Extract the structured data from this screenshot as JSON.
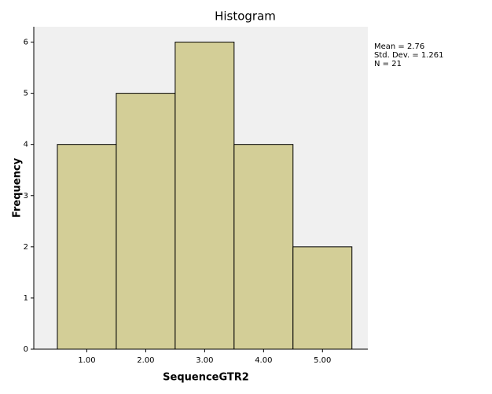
{
  "chart_data": {
    "type": "histogram",
    "title": "Histogram",
    "x_label": "SequenceGTR2",
    "y_label": "Frequency",
    "bins": [
      0.5,
      1.5,
      2.5,
      3.5,
      4.5,
      5.5
    ],
    "values": [
      4,
      5,
      6,
      4,
      2
    ],
    "color": "#d3ce97",
    "xlim": [
      0.1,
      5.77
    ],
    "ylim": [
      0,
      6.3
    ],
    "xticks": [
      {
        "value": 1,
        "label": "1.00"
      },
      {
        "value": 2,
        "label": "2.00"
      },
      {
        "value": 3,
        "label": "3.00"
      },
      {
        "value": 4,
        "label": "4.00"
      },
      {
        "value": 5,
        "label": "5.00"
      }
    ],
    "yticks": [
      0,
      1,
      2,
      3,
      4,
      5,
      6
    ],
    "annotations": [
      "Mean = 2.76",
      "Std. Dev. = 1.261",
      "N = 21"
    ]
  }
}
